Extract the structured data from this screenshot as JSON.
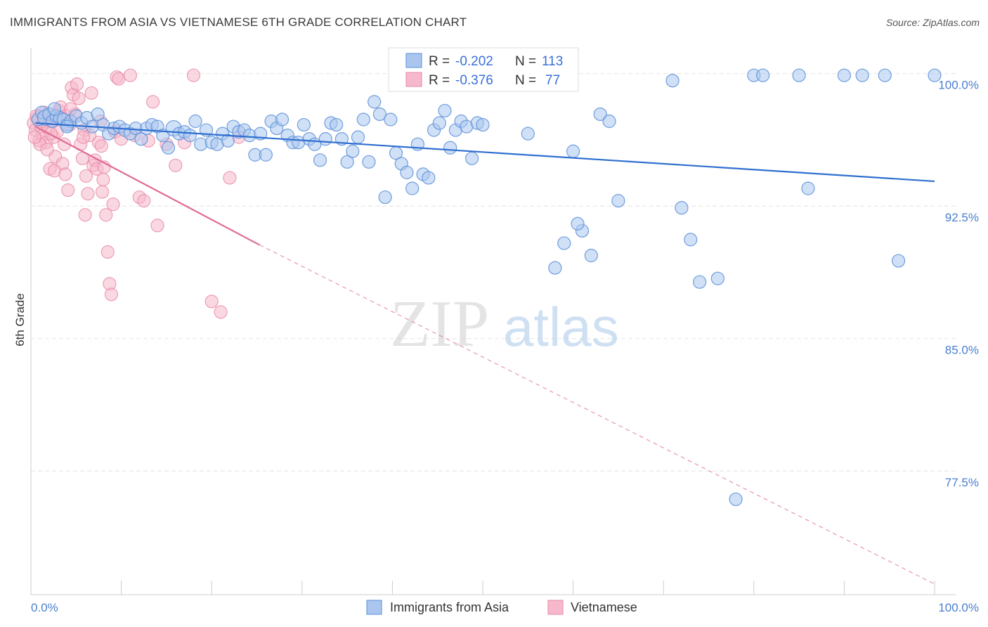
{
  "title": "IMMIGRANTS FROM ASIA VS VIETNAMESE 6TH GRADE CORRELATION CHART",
  "source": "Source: ZipAtlas.com",
  "watermark": {
    "zip": "ZIP",
    "atlas": "atlas"
  },
  "colors": {
    "blue_fill": "#aac6ee",
    "blue_stroke": "#5b8fd8",
    "blue_line": "#2f6fd0",
    "pink_fill": "#f6b8cb",
    "pink_stroke": "#e889a8",
    "pink_line": "#e06a96",
    "tick_text": "#4a7fd0",
    "grid": "#e4e4e4"
  },
  "legend": {
    "rows": [
      {
        "r_label": "R = ",
        "r_value": "-0.202",
        "n_label": "N = ",
        "n_value": "113"
      },
      {
        "r_label": "R = ",
        "r_value": "-0.376",
        "n_label": "N = ",
        "n_value": "77"
      }
    ]
  },
  "chart_data": {
    "type": "scatter",
    "ylabel": "6th Grade",
    "xlim": [
      0,
      100
    ],
    "ylim": [
      70.5,
      101.3
    ],
    "y_ticks": [
      77.5,
      85.0,
      92.5,
      100.0
    ],
    "y_tick_labels": [
      "77.5%",
      "85.0%",
      "92.5%",
      "100.0%"
    ],
    "x_tick_labels": [
      "0.0%",
      "100.0%"
    ],
    "grid": true,
    "legend_position": "top-center",
    "series": [
      {
        "name": "Immigrants from Asia",
        "color": "#5b8fd8",
        "trend": {
          "x0": 0.5,
          "y0": 97.2,
          "x1": 100,
          "y1": 93.9,
          "dashed_from": null
        },
        "points": [
          [
            0.8,
            97.4
          ],
          [
            1.2,
            97.8
          ],
          [
            1.6,
            97.5
          ],
          [
            2.0,
            97.7
          ],
          [
            2.4,
            97.3
          ],
          [
            2.8,
            97.6
          ],
          [
            3.2,
            97.5
          ],
          [
            3.6,
            97.4
          ],
          [
            4.0,
            97.1
          ],
          [
            4.4,
            97.3
          ],
          [
            5.0,
            97.6
          ],
          [
            5.6,
            97.2
          ],
          [
            6.2,
            97.5
          ],
          [
            6.8,
            97.0
          ],
          [
            7.4,
            97.7
          ],
          [
            8.0,
            97.1
          ],
          [
            8.6,
            96.6
          ],
          [
            9.2,
            96.9
          ],
          [
            9.8,
            97.0
          ],
          [
            10.4,
            96.8
          ],
          [
            11.0,
            96.6
          ],
          [
            11.6,
            96.9
          ],
          [
            12.2,
            96.3
          ],
          [
            12.8,
            96.9
          ],
          [
            13.4,
            97.1
          ],
          [
            14.0,
            97.0
          ],
          [
            14.6,
            96.5
          ],
          [
            15.2,
            95.8
          ],
          [
            15.8,
            96.9
          ],
          [
            16.4,
            96.6
          ],
          [
            17.0,
            96.7
          ],
          [
            17.6,
            96.5
          ],
          [
            18.2,
            97.3
          ],
          [
            18.8,
            96.0
          ],
          [
            19.4,
            96.8
          ],
          [
            20.0,
            96.1
          ],
          [
            20.6,
            96.0
          ],
          [
            21.2,
            96.6
          ],
          [
            21.8,
            96.2
          ],
          [
            22.4,
            97.0
          ],
          [
            23.0,
            96.7
          ],
          [
            23.6,
            96.8
          ],
          [
            24.2,
            96.5
          ],
          [
            24.8,
            95.4
          ],
          [
            25.4,
            96.6
          ],
          [
            26.0,
            95.4
          ],
          [
            26.6,
            97.3
          ],
          [
            27.2,
            96.9
          ],
          [
            27.8,
            97.4
          ],
          [
            28.4,
            96.5
          ],
          [
            29.0,
            96.1
          ],
          [
            29.6,
            96.1
          ],
          [
            30.2,
            97.1
          ],
          [
            30.8,
            96.3
          ],
          [
            31.4,
            96.0
          ],
          [
            32.0,
            95.1
          ],
          [
            32.6,
            96.3
          ],
          [
            33.2,
            97.2
          ],
          [
            33.8,
            97.1
          ],
          [
            34.4,
            96.3
          ],
          [
            35.0,
            95.0
          ],
          [
            35.6,
            95.6
          ],
          [
            36.2,
            96.4
          ],
          [
            36.8,
            97.4
          ],
          [
            37.4,
            95.0
          ],
          [
            38.0,
            98.4
          ],
          [
            38.6,
            97.7
          ],
          [
            39.2,
            93.0
          ],
          [
            39.8,
            97.4
          ],
          [
            40.4,
            95.5
          ],
          [
            41.0,
            94.9
          ],
          [
            41.6,
            94.4
          ],
          [
            42.2,
            93.5
          ],
          [
            42.8,
            96.0
          ],
          [
            43.4,
            94.3
          ],
          [
            44.0,
            94.1
          ],
          [
            44.6,
            96.8
          ],
          [
            45.2,
            97.2
          ],
          [
            45.8,
            97.9
          ],
          [
            46.4,
            95.8
          ],
          [
            47.0,
            96.8
          ],
          [
            47.6,
            97.3
          ],
          [
            48.2,
            97.0
          ],
          [
            48.8,
            95.2
          ],
          [
            49.4,
            97.2
          ],
          [
            50.0,
            97.1
          ],
          [
            55.0,
            96.6
          ],
          [
            60.0,
            95.6
          ],
          [
            58.0,
            89.0
          ],
          [
            59.0,
            90.4
          ],
          [
            61.0,
            91.1
          ],
          [
            60.5,
            91.5
          ],
          [
            62.0,
            89.7
          ],
          [
            63.0,
            97.7
          ],
          [
            64.0,
            97.3
          ],
          [
            65.0,
            92.8
          ],
          [
            71.0,
            99.6
          ],
          [
            72.0,
            92.4
          ],
          [
            73.0,
            90.6
          ],
          [
            74.0,
            88.2
          ],
          [
            76.0,
            88.4
          ],
          [
            78.0,
            75.9
          ],
          [
            80.0,
            99.9
          ],
          [
            81.0,
            99.9
          ],
          [
            85.0,
            99.9
          ],
          [
            86.0,
            93.5
          ],
          [
            90.0,
            99.9
          ],
          [
            92.0,
            99.9
          ],
          [
            94.5,
            99.9
          ],
          [
            96.0,
            89.4
          ],
          [
            100.0,
            99.9
          ],
          [
            4.0,
            97.0
          ],
          [
            2.6,
            98.0
          ]
        ]
      },
      {
        "name": "Vietnamese",
        "color": "#e889a8",
        "trend": {
          "x0": 0.5,
          "y0": 97.0,
          "x1": 25.3,
          "y1": 90.3,
          "dash_x1": 100,
          "dash_y1": 71.1
        },
        "points": [
          [
            0.3,
            97.2
          ],
          [
            0.5,
            96.8
          ],
          [
            0.7,
            97.5
          ],
          [
            0.9,
            96.2
          ],
          [
            1.1,
            97.0
          ],
          [
            1.3,
            96.5
          ],
          [
            1.5,
            97.8
          ],
          [
            1.7,
            96.1
          ],
          [
            1.9,
            96.9
          ],
          [
            2.1,
            94.6
          ],
          [
            2.3,
            97.3
          ],
          [
            2.5,
            96.4
          ],
          [
            2.7,
            95.3
          ],
          [
            2.9,
            96.7
          ],
          [
            3.1,
            97.9
          ],
          [
            3.3,
            98.1
          ],
          [
            3.5,
            94.9
          ],
          [
            3.7,
            96.0
          ],
          [
            3.9,
            97.6
          ],
          [
            4.1,
            93.4
          ],
          [
            4.3,
            97.1
          ],
          [
            4.5,
            99.2
          ],
          [
            4.7,
            98.8
          ],
          [
            4.9,
            97.7
          ],
          [
            5.1,
            99.4
          ],
          [
            5.3,
            98.6
          ],
          [
            5.5,
            96.0
          ],
          [
            5.7,
            95.2
          ],
          [
            5.9,
            96.8
          ],
          [
            6.1,
            94.2
          ],
          [
            6.3,
            93.2
          ],
          [
            6.5,
            96.5
          ],
          [
            6.7,
            98.9
          ],
          [
            6.9,
            94.8
          ],
          [
            7.1,
            95.1
          ],
          [
            7.3,
            94.6
          ],
          [
            7.5,
            96.1
          ],
          [
            7.7,
            97.3
          ],
          [
            7.9,
            93.3
          ],
          [
            8.1,
            94.7
          ],
          [
            8.3,
            92.0
          ],
          [
            8.5,
            89.9
          ],
          [
            8.7,
            88.1
          ],
          [
            8.9,
            87.5
          ],
          [
            9.1,
            92.6
          ],
          [
            9.3,
            96.7
          ],
          [
            9.5,
            99.8
          ],
          [
            9.7,
            99.7
          ],
          [
            11.0,
            99.9
          ],
          [
            11.5,
            96.5
          ],
          [
            12.0,
            93.0
          ],
          [
            12.5,
            92.8
          ],
          [
            13.0,
            96.2
          ],
          [
            13.5,
            98.4
          ],
          [
            14.0,
            91.4
          ],
          [
            15.0,
            96.0
          ],
          [
            16.0,
            94.8
          ],
          [
            17.0,
            96.1
          ],
          [
            18.0,
            99.9
          ],
          [
            20.0,
            87.1
          ],
          [
            21.0,
            86.5
          ],
          [
            22.0,
            94.1
          ],
          [
            23.0,
            96.4
          ],
          [
            2.6,
            94.5
          ],
          [
            1.0,
            96.0
          ],
          [
            0.6,
            97.6
          ],
          [
            1.8,
            95.7
          ],
          [
            3.8,
            94.3
          ],
          [
            5.8,
            96.4
          ],
          [
            7.8,
            95.9
          ],
          [
            6.0,
            92.0
          ],
          [
            4.4,
            98.0
          ],
          [
            2.2,
            96.6
          ],
          [
            1.4,
            97.3
          ],
          [
            0.4,
            96.4
          ],
          [
            8.0,
            94.0
          ],
          [
            10.0,
            96.3
          ]
        ]
      }
    ]
  },
  "bottom_legend": [
    "Immigrants from Asia",
    "Vietnamese"
  ]
}
